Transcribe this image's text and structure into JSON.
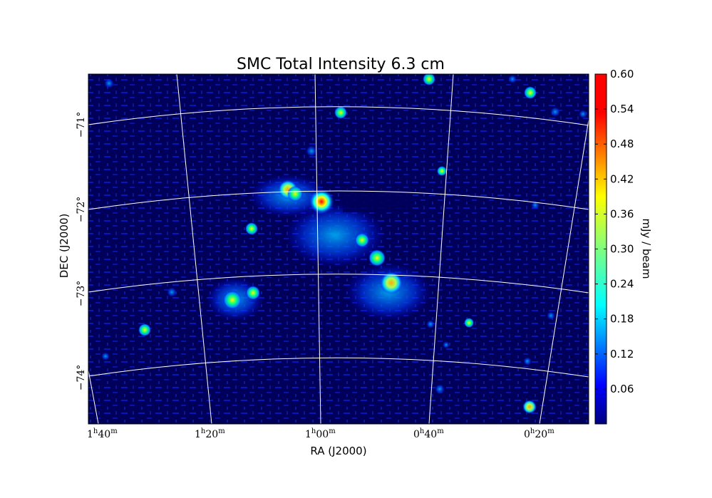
{
  "chart_data": {
    "type": "heatmap",
    "title": "SMC Total Intensity 6.3 cm",
    "xlabel": "RA (J2000)",
    "ylabel": "DEC (J2000)",
    "x_ticks": [
      {
        "h": "1",
        "m": "40"
      },
      {
        "h": "1",
        "m": "20"
      },
      {
        "h": "1",
        "m": "00"
      },
      {
        "h": "0",
        "m": "40"
      },
      {
        "h": "0",
        "m": "20"
      }
    ],
    "y_ticks": [
      "−71°",
      "−72°",
      "−73°",
      "−74°"
    ],
    "grid": true,
    "colorbar": {
      "label": "mJy / beam",
      "range": [
        0.0,
        0.6
      ],
      "ticks": [
        "0.06",
        "0.12",
        "0.18",
        "0.24",
        "0.30",
        "0.36",
        "0.42",
        "0.48",
        "0.54",
        "0.60"
      ],
      "colormap": "jet"
    },
    "sources": [
      {
        "ra_hms": "0h58.5m",
        "dec": -71.85,
        "peak": 0.6
      },
      {
        "ra_hms": "1h03.5m",
        "dec": -71.8,
        "peak": 0.22
      },
      {
        "ra_hms": "0h50m",
        "dec": -72.7,
        "peak": 0.25
      },
      {
        "ra_hms": "0h47.5m",
        "dec": -73.15,
        "peak": 0.35
      },
      {
        "ra_hms": "1h12.5m",
        "dec": -73.1,
        "peak": 0.2
      },
      {
        "ra_hms": "1h08.5m",
        "dec": -73.05,
        "peak": 0.22
      },
      {
        "ra_hms": "1h29m",
        "dec": -73.6,
        "peak": 0.18
      },
      {
        "ra_hms": "0h19m",
        "dec": -74.5,
        "peak": 0.25
      },
      {
        "ra_hms": "0h55.5m",
        "dec": -70.95,
        "peak": 0.2
      },
      {
        "ra_hms": "0h41m",
        "dec": -70.55,
        "peak": 0.2
      },
      {
        "ra_hms": "0h21m",
        "dec": -70.8,
        "peak": 0.2
      }
    ],
    "colors": {
      "background": "#000066",
      "grid": "#ffffff"
    }
  }
}
